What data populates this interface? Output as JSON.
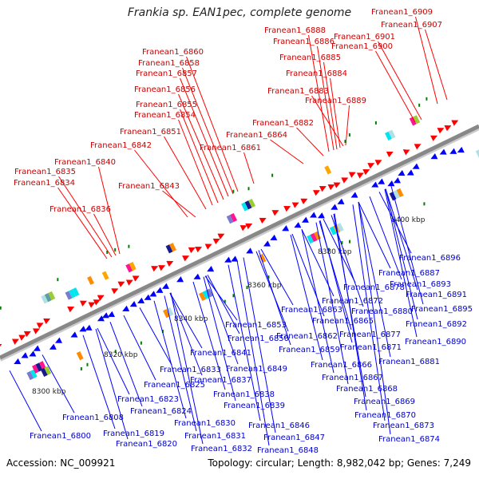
{
  "title": "Frankia sp. EAN1pec, complete genome",
  "footer": {
    "accession": "Accession: NC_009921",
    "summary": "Topology: circular; Length: 8,982,042 bp; Genes: 7,249"
  },
  "colors": {
    "top_strand": "#ff0000",
    "bottom_strand": "#0000ff",
    "backbone": "#888888",
    "tick_marks": "#008000"
  },
  "scale_ticks": [
    "8300 kbp",
    "8320 kbp",
    "8340 kbp",
    "8360 kbp",
    "8380 kbp",
    "8400 kbp"
  ],
  "top_genes": [
    "Franean1_6909",
    "Franean1_6907",
    "Franean1_6888",
    "Franean1_6886",
    "Franean1_6901",
    "Franean1_6900",
    "Franean1_6885",
    "Franean1_6884",
    "Franean1_6883",
    "Franean1_6889",
    "Franean1_6860",
    "Franean1_6858",
    "Franean1_6857",
    "Franean1_6856",
    "Franean1_6855",
    "Franean1_6854",
    "Franean1_6851",
    "Franean1_6842",
    "Franean1_6861",
    "Franean1_6882",
    "Franean1_6864",
    "Franean1_6840",
    "Franean1_6835",
    "Franean1_6834",
    "Franean1_6843",
    "Franean1_6836"
  ],
  "bottom_genes": [
    "Franean1_6896",
    "Franean1_6887",
    "Franean1_6893",
    "Franean1_6878",
    "Franean1_6891",
    "Franean1_6872",
    "Franean1_6880",
    "Franean1_6895",
    "Franean1_6863",
    "Franean1_6892",
    "Franean1_6853",
    "Franean1_6865",
    "Franean1_6862",
    "Franean1_6877",
    "Franean1_6890",
    "Franean1_6850",
    "Franean1_6871",
    "Franean1_6859",
    "Franean1_6841",
    "Franean1_6881",
    "Franean1_6866",
    "Franean1_6833",
    "Franean1_6849",
    "Franean1_6867",
    "Franean1_6837",
    "Franean1_6825",
    "Franean1_6868",
    "Franean1_6838",
    "Franean1_6823",
    "Franean1_6839",
    "Franean1_6869",
    "Franean1_6824",
    "Franean1_6870",
    "Franean1_6808",
    "Franean1_6830",
    "Franean1_6846",
    "Franean1_6873",
    "Franean1_6819",
    "Franean1_6831",
    "Franean1_6847",
    "Franean1_6800",
    "Franean1_6820",
    "Franean1_6874",
    "Franean1_6832",
    "Franean1_6848"
  ]
}
